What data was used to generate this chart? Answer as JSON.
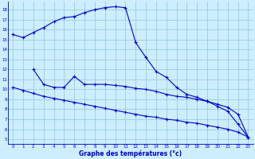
{
  "title": "Graphe des températures (°c)",
  "bg_color": "#cceeff",
  "line_color": "#0000cc",
  "grid_color": "#99ccdd",
  "xlim": [
    -0.5,
    23.5
  ],
  "ylim": [
    4.5,
    18.8
  ],
  "xticks": [
    0,
    1,
    2,
    3,
    4,
    5,
    6,
    7,
    8,
    9,
    10,
    11,
    12,
    13,
    14,
    15,
    16,
    17,
    18,
    19,
    20,
    21,
    22,
    23
  ],
  "yticks": [
    5,
    6,
    7,
    8,
    9,
    10,
    11,
    12,
    13,
    14,
    15,
    16,
    17,
    18
  ],
  "max_line": {
    "x": [
      0,
      1,
      2,
      3,
      4,
      5,
      6,
      7,
      8,
      9,
      10,
      11,
      12,
      13,
      14,
      15,
      16,
      17,
      18,
      19,
      20,
      21,
      22,
      23
    ],
    "y": [
      15.5,
      15.2,
      15.7,
      16.2,
      16.8,
      17.2,
      17.3,
      17.7,
      18.0,
      18.2,
      18.3,
      18.2,
      14.7,
      13.2,
      11.8,
      11.2,
      10.2,
      9.5,
      9.2,
      8.8,
      8.3,
      7.8,
      6.5,
      5.2
    ]
  },
  "mid_line": {
    "x": [
      2,
      3,
      4,
      5,
      6,
      7,
      8,
      9,
      10,
      11,
      12,
      13,
      14,
      15,
      16,
      17,
      18,
      19,
      20,
      21,
      22,
      23
    ],
    "y": [
      12.0,
      10.5,
      10.2,
      10.2,
      11.3,
      10.5,
      10.5,
      10.5,
      10.4,
      10.3,
      10.1,
      10.0,
      9.8,
      9.5,
      9.3,
      9.2,
      9.0,
      8.8,
      8.5,
      8.2,
      7.5,
      5.2
    ]
  },
  "min_line": {
    "x": [
      0,
      1,
      2,
      3,
      4,
      5,
      6,
      7,
      8,
      9,
      10,
      11,
      12,
      13,
      14,
      15,
      16,
      17,
      18,
      19,
      20,
      21,
      22,
      23
    ],
    "y": [
      10.2,
      9.9,
      9.6,
      9.3,
      9.1,
      8.9,
      8.7,
      8.5,
      8.3,
      8.1,
      7.9,
      7.7,
      7.5,
      7.3,
      7.2,
      7.0,
      6.9,
      6.7,
      6.6,
      6.4,
      6.2,
      6.0,
      5.7,
      5.2
    ]
  }
}
